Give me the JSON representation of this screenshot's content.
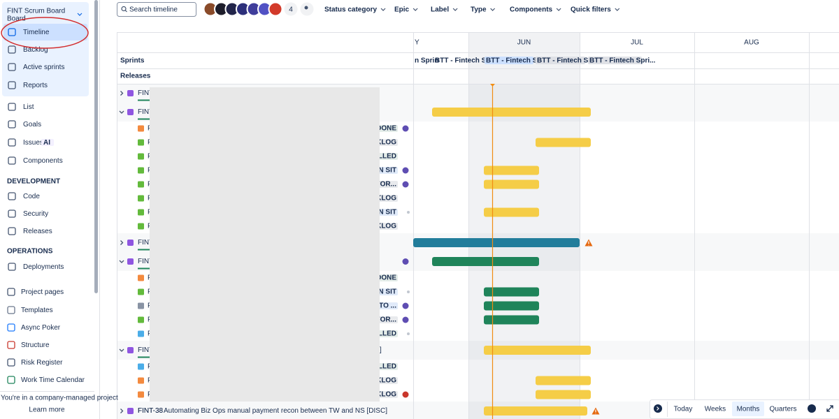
{
  "sidebar": {
    "project": "FINT Scrum Board",
    "project_type": "Board",
    "planning": [
      "Timeline",
      "Backlog",
      "Active sprints",
      "Reports"
    ],
    "general": [
      "List",
      "Goals",
      "Issues",
      "Components"
    ],
    "ai_badge": "AI",
    "development": {
      "title": "DEVELOPMENT",
      "items": [
        "Code",
        "Security",
        "Releases"
      ]
    },
    "operations": {
      "title": "OPERATIONS",
      "items": [
        "Deployments"
      ]
    },
    "more": [
      "Project pages",
      "Templates",
      "Async Poker",
      "Structure",
      "Risk Register",
      "Work Time Calendar"
    ],
    "footer": "You're in a company-managed project",
    "learn_more": "Learn more"
  },
  "toolbar": {
    "search_placeholder": "Search timeline",
    "avatar_overflow": "4",
    "filters": [
      "Status category",
      "Epic",
      "Label",
      "Type",
      "Components",
      "Quick filters"
    ]
  },
  "timeline": {
    "months": [
      "Y",
      "JUN",
      "JUL",
      "AUG"
    ],
    "sprints_label": "Sprints",
    "releases_label": "Releases",
    "sprints": [
      "n Sprin",
      "BTT - Fintech S",
      "BTT - Fintech S...",
      "BTT - Fintech S...",
      "BTT - Fintech Spri..."
    ],
    "epics": [
      {
        "key": "FINT",
        "children": []
      },
      {
        "key": "FINT",
        "children": [
          {
            "key": "F",
            "status": "DONE",
            "status_color": "#216e4e",
            "icon_color": "#f38a3f"
          },
          {
            "key": "F",
            "status": "BACKLOG",
            "status_color": "#44546f",
            "icon_color": "#63ba3c"
          },
          {
            "key": "F",
            "status": "CANCELLED",
            "status_color": "#216e4e",
            "icon_color": "#63ba3c"
          },
          {
            "key": "F",
            "status": "IN SIT",
            "status_color": "#0055cc",
            "icon_color": "#63ba3c"
          },
          {
            "key": "F",
            "status": "FOR...",
            "status_color": "#44546f",
            "icon_color": "#63ba3c"
          },
          {
            "key": "F",
            "status": "BACKLOG",
            "status_color": "#44546f",
            "icon_color": "#63ba3c"
          },
          {
            "key": "F",
            "status": "IN SIT",
            "status_color": "#0055cc",
            "icon_color": "#63ba3c"
          },
          {
            "key": "F",
            "status": "BACKLOG",
            "status_color": "#44546f",
            "icon_color": "#63ba3c"
          }
        ]
      },
      {
        "key": "FINT",
        "children": []
      },
      {
        "key": "FINT",
        "children": [
          {
            "key": "F",
            "status": "DONE",
            "status_color": "#216e4e",
            "icon_color": "#f38a3f"
          },
          {
            "key": "F",
            "status": "IN SIT",
            "status_color": "#0055cc",
            "icon_color": "#63ba3c"
          },
          {
            "key": "F",
            "status": "TO ...",
            "status_color": "#0055cc",
            "icon_color": "#8993a4"
          },
          {
            "key": "F",
            "status": "FOR...",
            "status_color": "#44546f",
            "icon_color": "#63ba3c"
          },
          {
            "key": "F",
            "status": "CELLED",
            "status_color": "#216e4e",
            "icon_color": "#4bade8"
          }
        ]
      },
      {
        "key": "FINT",
        "summary": "]",
        "children": [
          {
            "key": "F",
            "status": "CANCELLED",
            "status_color": "#216e4e",
            "icon_color": "#4bade8"
          },
          {
            "key": "F",
            "status": "BACKLOG",
            "status_color": "#44546f",
            "icon_color": "#f38a3f"
          },
          {
            "key": "F",
            "status": "CKLOG",
            "status_color": "#44546f",
            "icon_color": "#f38a3f"
          }
        ]
      },
      {
        "key": "FINT-38",
        "summary": "Automating Biz Ops manual payment recon between TW and NS [DISC]",
        "children": []
      }
    ]
  },
  "view_switcher": [
    "Today",
    "Weeks",
    "Months",
    "Quarters"
  ]
}
